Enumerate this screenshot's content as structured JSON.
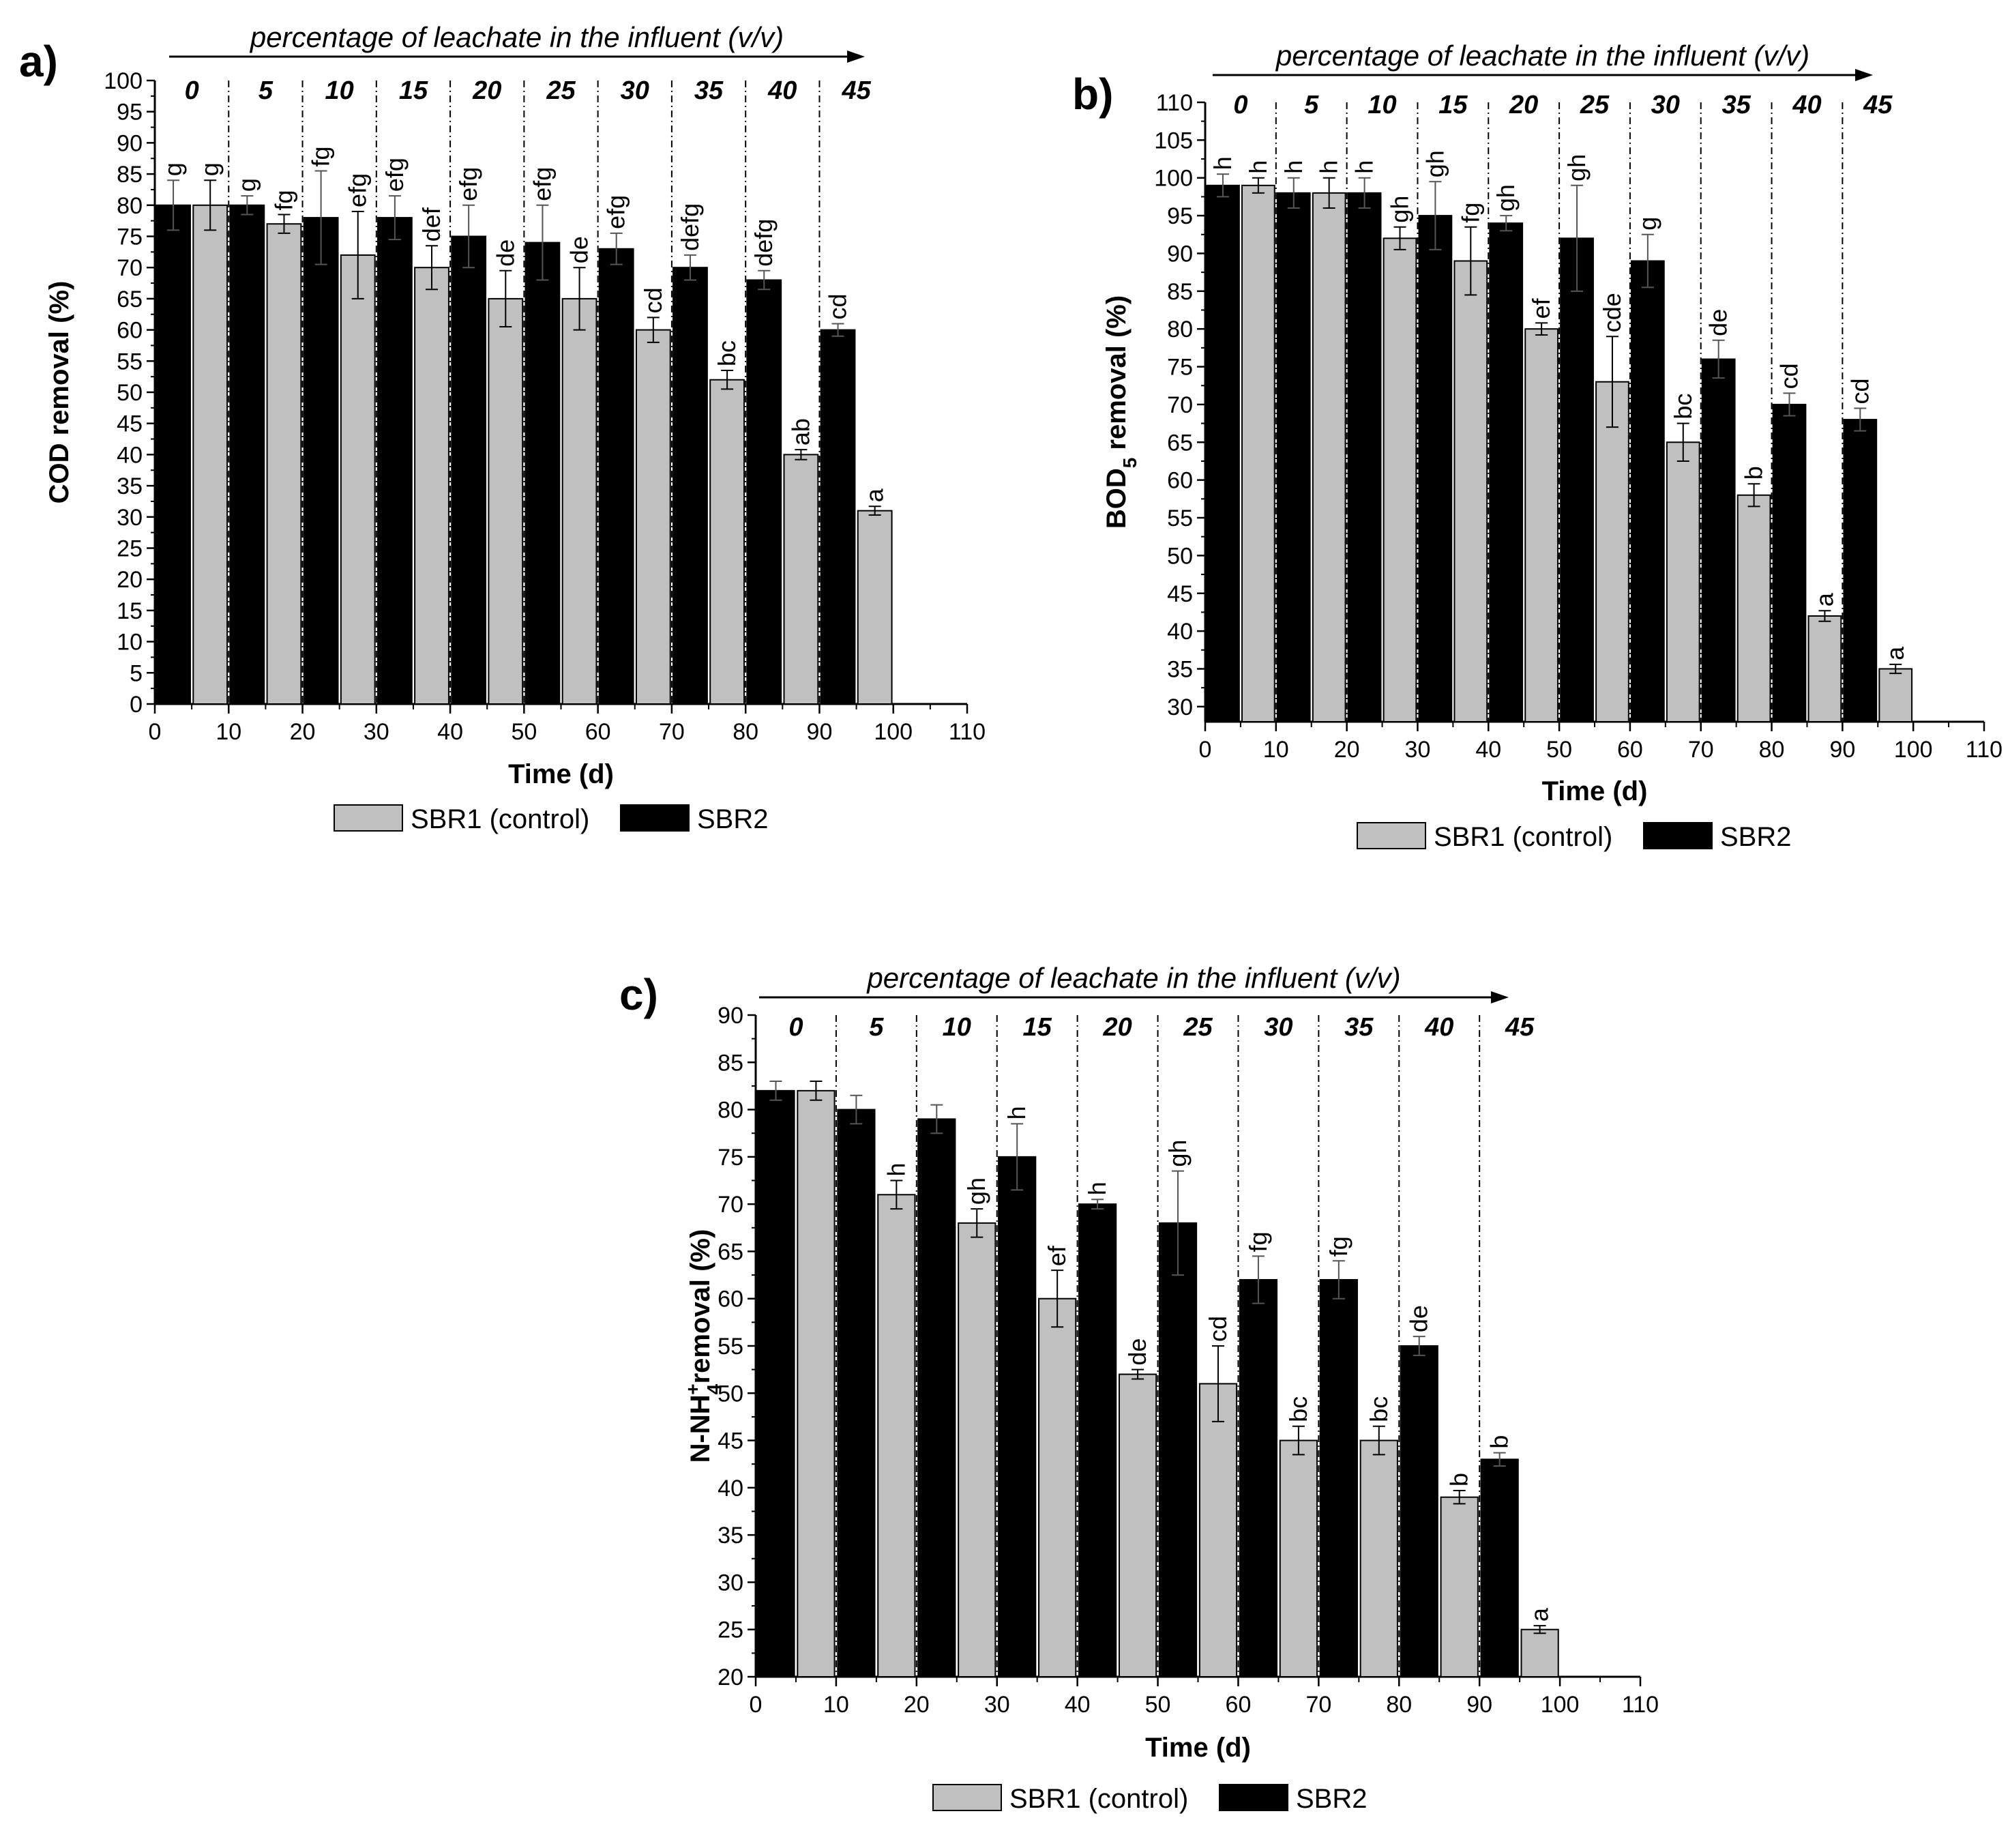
{
  "legend": {
    "sbr1_label": "SBR1 (control)",
    "sbr2_label": "SBR2"
  },
  "colors": {
    "sbr1": "#c0c0c0",
    "sbr2": "#000000",
    "axis": "#000000"
  },
  "top_title": "percentage of leachate in the influent (v/v)",
  "percentages": [
    "0",
    "5",
    "10",
    "15",
    "20",
    "25",
    "30",
    "35",
    "40",
    "45"
  ],
  "chart_data": [
    {
      "type": "bar",
      "panel": "a)",
      "xlabel": "Time (d)",
      "ylabel": "COD removal (%)",
      "xlim": [
        0,
        110
      ],
      "ylim": [
        0,
        100
      ],
      "xticks": [
        0,
        10,
        20,
        30,
        40,
        50,
        60,
        70,
        80,
        90,
        100,
        110
      ],
      "yticks": [
        0,
        5,
        10,
        15,
        20,
        25,
        30,
        35,
        40,
        45,
        50,
        55,
        60,
        65,
        70,
        75,
        80,
        85,
        90,
        95,
        100
      ],
      "section_boundaries": [
        10,
        20,
        30,
        40,
        50,
        60,
        70,
        80,
        90
      ],
      "series": [
        {
          "name": "SBR2",
          "x": [
            2.5,
            12.5,
            22.5,
            32.5,
            42.5,
            52.5,
            62.5,
            72.5,
            82.5,
            92.5
          ],
          "values": [
            80,
            80,
            78,
            78,
            75,
            74,
            73,
            70,
            68,
            60
          ],
          "errors": [
            4,
            1.5,
            7.5,
            3.5,
            5,
            6,
            2.5,
            2,
            1.5,
            1
          ],
          "labels": [
            "g",
            "g",
            "fg",
            "efg",
            "efg",
            "efg",
            "efg",
            "defg",
            "defg",
            "cd"
          ]
        },
        {
          "name": "SBR1 (control)",
          "x": [
            7.5,
            17.5,
            27.5,
            37.5,
            47.5,
            57.5,
            67.5,
            77.5,
            87.5,
            97.5
          ],
          "values": [
            80,
            77,
            72,
            70,
            65,
            65,
            60,
            52,
            40,
            31
          ],
          "errors": [
            4,
            1.5,
            7,
            3.5,
            4.5,
            5,
            2,
            1.5,
            0.8,
            0.7
          ],
          "labels": [
            "g",
            "fg",
            "efg",
            "def",
            "de",
            "de",
            "cd",
            "bc",
            "ab",
            "a"
          ]
        }
      ]
    },
    {
      "type": "bar",
      "panel": "b)",
      "xlabel": "Time (d)",
      "ylabel": "BOD5 removal (%)",
      "ylabel_main": "BOD",
      "ylabel_sub": "5",
      "ylabel_rest": " removal (%)",
      "xlim": [
        0,
        110
      ],
      "ylim": [
        28,
        110
      ],
      "xticks": [
        0,
        10,
        20,
        30,
        40,
        50,
        60,
        70,
        80,
        90,
        100,
        110
      ],
      "yticks": [
        30,
        35,
        40,
        45,
        50,
        55,
        60,
        65,
        70,
        75,
        80,
        85,
        90,
        95,
        100,
        105,
        110
      ],
      "section_boundaries": [
        10,
        20,
        30,
        40,
        50,
        60,
        70,
        80,
        90
      ],
      "series": [
        {
          "name": "SBR2",
          "x": [
            2.5,
            12.5,
            22.5,
            32.5,
            42.5,
            52.5,
            62.5,
            72.5,
            82.5,
            92.5
          ],
          "values": [
            99,
            98,
            98,
            95,
            94,
            92,
            89,
            76,
            70,
            68
          ],
          "errors": [
            1.5,
            2,
            2,
            4.5,
            1,
            7,
            3.5,
            2.5,
            1.5,
            1.5
          ],
          "labels": [
            "h",
            "h",
            "h",
            "gh",
            "gh",
            "gh",
            "g",
            "de",
            "cd",
            "cd"
          ]
        },
        {
          "name": "SBR1 (control)",
          "x": [
            7.5,
            17.5,
            27.5,
            37.5,
            47.5,
            57.5,
            67.5,
            77.5,
            87.5,
            97.5
          ],
          "values": [
            99,
            98,
            92,
            89,
            80,
            73,
            65,
            58,
            42,
            35
          ],
          "errors": [
            1,
            2,
            1.5,
            4.5,
            0.8,
            6,
            2.5,
            1.5,
            0.7,
            0.6
          ],
          "labels": [
            "h",
            "h",
            "gh",
            "fg",
            "ef",
            "cde",
            "bc",
            "b",
            "a",
            "a"
          ]
        }
      ]
    },
    {
      "type": "bar",
      "panel": "c)",
      "xlabel": "Time (d)",
      "ylabel": "N-NH4+ removal (%)",
      "ylabel_main": "N-NH",
      "ylabel_sub": "4",
      "ylabel_sup": "+",
      "ylabel_rest": "removal (%)",
      "xlim": [
        0,
        110
      ],
      "ylim": [
        20,
        90
      ],
      "xticks": [
        0,
        10,
        20,
        30,
        40,
        50,
        60,
        70,
        80,
        90,
        100,
        110
      ],
      "yticks": [
        20,
        25,
        30,
        35,
        40,
        45,
        50,
        55,
        60,
        65,
        70,
        75,
        80,
        85,
        90
      ],
      "section_boundaries": [
        10,
        20,
        30,
        40,
        50,
        60,
        70,
        80,
        90
      ],
      "series": [
        {
          "name": "SBR2",
          "x": [
            2.5,
            12.5,
            22.5,
            32.5,
            42.5,
            52.5,
            62.5,
            72.5,
            82.5,
            92.5
          ],
          "values": [
            82,
            80,
            79,
            75,
            70,
            68,
            62,
            62,
            55,
            43
          ],
          "errors": [
            1,
            1.5,
            1.5,
            3.5,
            0.5,
            5.5,
            2.5,
            2,
            1,
            0.7
          ],
          "labels": [
            "",
            "",
            "",
            "h",
            "h",
            "gh",
            "fg",
            "fg",
            "de",
            "b"
          ]
        },
        {
          "name": "SBR1 (control)",
          "x": [
            7.5,
            17.5,
            27.5,
            37.5,
            47.5,
            57.5,
            67.5,
            77.5,
            87.5,
            97.5
          ],
          "values": [
            82,
            71,
            68,
            60,
            52,
            51,
            45,
            45,
            39,
            25
          ],
          "errors": [
            1,
            1.5,
            1.5,
            3,
            0.5,
            4,
            1.5,
            1.5,
            0.7,
            0.4
          ],
          "labels": [
            "",
            "h",
            "gh",
            "ef",
            "de",
            "cd",
            "bc",
            "bc",
            "b",
            "a"
          ]
        }
      ]
    }
  ]
}
